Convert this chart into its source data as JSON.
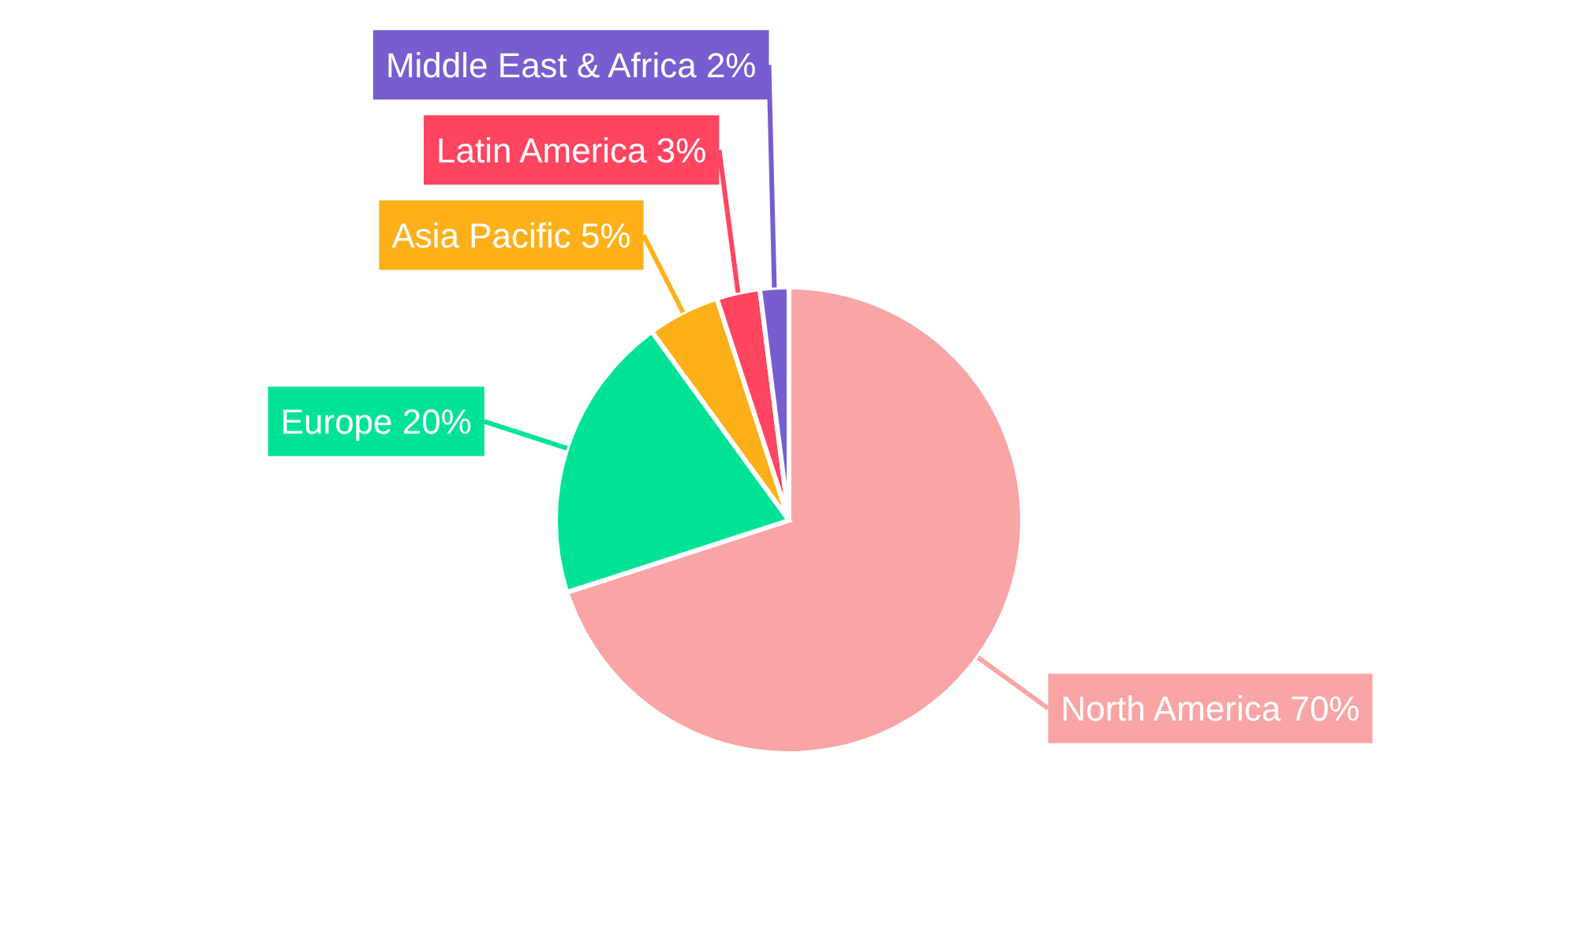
{
  "chart_data": {
    "type": "pie",
    "categories": [
      "North America",
      "Europe",
      "Asia Pacific",
      "Latin America",
      "Middle East & Africa"
    ],
    "values": [
      70,
      20,
      5,
      3,
      2
    ],
    "colors": [
      "#f9a5a5",
      "#00e396",
      "#feb019",
      "#ff4560",
      "#775dd0"
    ],
    "value_labels": [
      "70%",
      "20%",
      "5%",
      "3%",
      "2%"
    ],
    "legend": false
  }
}
